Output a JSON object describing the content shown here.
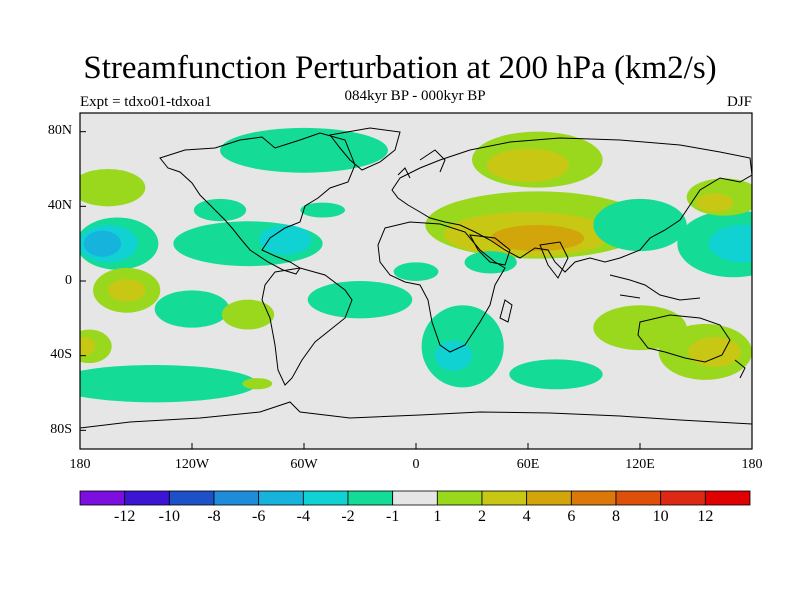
{
  "title": "Streamfunction Perturbation at 200 hPa (km2/s)",
  "subtitle": "084kyr BP - 000kyr BP",
  "experiment": "Expt = tdxo01-tdxoa1",
  "season": "DJF",
  "lat_labels": [
    "80N",
    "40N",
    "0",
    "40S",
    "80S"
  ],
  "lon_labels": [
    "180",
    "120W",
    "60W",
    "0",
    "60E",
    "120E",
    "180"
  ],
  "colorbar": {
    "labels": [
      "-12",
      "-10",
      "-8",
      "-6",
      "-4",
      "-2",
      "-1",
      "1",
      "2",
      "4",
      "6",
      "8",
      "10",
      "12"
    ],
    "colors": [
      "#7d0ee0",
      "#3b14d4",
      "#1e50c8",
      "#1e8cd8",
      "#16b4dc",
      "#10d2d2",
      "#14dc96",
      "#e6e6e6",
      "#9ad81e",
      "#c8c814",
      "#d2a50a",
      "#dc780a",
      "#dc500a",
      "#dc2814",
      "#e00000"
    ]
  },
  "map": {
    "lon_range": [
      -180,
      180
    ],
    "lat_range": [
      -90,
      90
    ],
    "background": "#e6e6e6",
    "contour_fields": [
      {
        "lon": -160,
        "lat": 20,
        "rlon": 22,
        "rlat": 14,
        "color": "#14dc96"
      },
      {
        "lon": -165,
        "lat": 20,
        "rlon": 16,
        "rlat": 10,
        "color": "#10d2d2"
      },
      {
        "lon": -168,
        "lat": 20,
        "rlon": 10,
        "rlat": 7,
        "color": "#16b4dc"
      },
      {
        "lon": -90,
        "lat": 20,
        "rlon": 40,
        "rlat": 12,
        "color": "#14dc96"
      },
      {
        "lon": -70,
        "lat": 22,
        "rlon": 14,
        "rlat": 8,
        "color": "#10d2d2"
      },
      {
        "lon": -60,
        "lat": 70,
        "rlon": 45,
        "rlat": 12,
        "color": "#14dc96"
      },
      {
        "lon": -50,
        "lat": 38,
        "rlon": 12,
        "rlat": 4,
        "color": "#14dc96"
      },
      {
        "lon": -120,
        "lat": -15,
        "rlon": 20,
        "rlat": 10,
        "color": "#14dc96"
      },
      {
        "lon": -90,
        "lat": -18,
        "rlon": 14,
        "rlat": 8,
        "color": "#9ad81e"
      },
      {
        "lon": -155,
        "lat": -5,
        "rlon": 18,
        "rlat": 12,
        "color": "#9ad81e"
      },
      {
        "lon": -155,
        "lat": -5,
        "rlon": 10,
        "rlat": 6,
        "color": "#c8c814"
      },
      {
        "lon": -140,
        "lat": -55,
        "rlon": 55,
        "rlat": 10,
        "color": "#14dc96"
      },
      {
        "lon": -85,
        "lat": -55,
        "rlon": 8,
        "rlat": 3,
        "color": "#9ad81e"
      },
      {
        "lon": -30,
        "lat": -10,
        "rlon": 28,
        "rlat": 10,
        "color": "#14dc96"
      },
      {
        "lon": 25,
        "lat": -35,
        "rlon": 22,
        "rlat": 22,
        "color": "#14dc96"
      },
      {
        "lon": 20,
        "lat": -40,
        "rlon": 10,
        "rlat": 8,
        "color": "#10d2d2"
      },
      {
        "lon": 65,
        "lat": 30,
        "rlon": 60,
        "rlat": 18,
        "color": "#9ad81e"
      },
      {
        "lon": 60,
        "lat": 25,
        "rlon": 45,
        "rlat": 12,
        "color": "#c8c814"
      },
      {
        "lon": 65,
        "lat": 23,
        "rlon": 25,
        "rlat": 7,
        "color": "#d2a50a"
      },
      {
        "lon": 65,
        "lat": 65,
        "rlon": 35,
        "rlat": 15,
        "color": "#9ad81e"
      },
      {
        "lon": 60,
        "lat": 62,
        "rlon": 22,
        "rlat": 9,
        "color": "#c8c814"
      },
      {
        "lon": 0,
        "lat": 5,
        "rlon": 12,
        "rlat": 5,
        "color": "#14dc96"
      },
      {
        "lon": 40,
        "lat": 10,
        "rlon": 14,
        "rlat": 6,
        "color": "#14dc96"
      },
      {
        "lon": 120,
        "lat": 30,
        "rlon": 25,
        "rlat": 14,
        "color": "#14dc96"
      },
      {
        "lon": 170,
        "lat": 20,
        "rlon": 30,
        "rlat": 18,
        "color": "#14dc96"
      },
      {
        "lon": 175,
        "lat": 20,
        "rlon": 18,
        "rlat": 10,
        "color": "#10d2d2"
      },
      {
        "lon": 165,
        "lat": 45,
        "rlon": 20,
        "rlat": 10,
        "color": "#9ad81e"
      },
      {
        "lon": 160,
        "lat": 42,
        "rlon": 10,
        "rlat": 5,
        "color": "#c8c814"
      },
      {
        "lon": 120,
        "lat": -25,
        "rlon": 25,
        "rlat": 12,
        "color": "#9ad81e"
      },
      {
        "lon": 155,
        "lat": -38,
        "rlon": 25,
        "rlat": 15,
        "color": "#9ad81e"
      },
      {
        "lon": 160,
        "lat": -38,
        "rlon": 14,
        "rlat": 8,
        "color": "#c8c814"
      },
      {
        "lon": 75,
        "lat": -50,
        "rlon": 25,
        "rlat": 8,
        "color": "#14dc96"
      },
      {
        "lon": -175,
        "lat": -35,
        "rlon": 12,
        "rlat": 9,
        "color": "#9ad81e"
      },
      {
        "lon": -178,
        "lat": -35,
        "rlon": 6,
        "rlat": 5,
        "color": "#c8c814"
      },
      {
        "lon": -165,
        "lat": 50,
        "rlon": 20,
        "rlat": 10,
        "color": "#9ad81e"
      },
      {
        "lon": -105,
        "lat": 38,
        "rlon": 14,
        "rlat": 6,
        "color": "#14dc96"
      }
    ]
  }
}
